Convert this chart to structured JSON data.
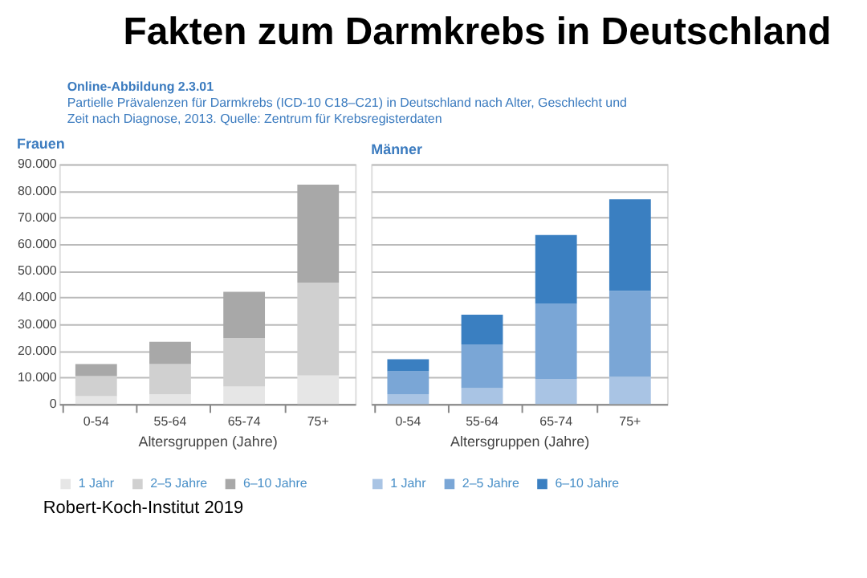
{
  "chart_data": [
    {
      "type": "bar",
      "title": "Frauen",
      "stacked": true,
      "categories": [
        "0-54",
        "55-64",
        "65-74",
        "75+"
      ],
      "series": [
        {
          "name": "1 Jahr",
          "color": "#e6e6e6",
          "values": [
            3000,
            3700,
            6600,
            10700
          ]
        },
        {
          "name": "2–5 Jahre",
          "color": "#d0d0d0",
          "values": [
            7500,
            11300,
            18200,
            34900
          ]
        },
        {
          "name": "6–10 Jahre",
          "color": "#a8a8a8",
          "values": [
            4500,
            8400,
            17300,
            36700
          ]
        }
      ],
      "xlabel": "Altersgruppen (Jahre)",
      "ylim": [
        0,
        90000
      ],
      "yticks": [
        0,
        {
          "value": 10000,
          "label": "10.000"
        },
        {
          "value": 20000,
          "label": "20.000"
        },
        {
          "value": 30000,
          "label": "30.000"
        },
        {
          "value": 40000,
          "label": "40.000"
        },
        {
          "value": 50000,
          "label": "50.000"
        },
        {
          "value": 60000,
          "label": "60.000"
        },
        {
          "value": 70000,
          "label": "70.000"
        },
        {
          "value": 80000,
          "label": "80.000"
        },
        {
          "value": 90000,
          "label": "90.000"
        }
      ],
      "grid": "y",
      "legend": "bottom",
      "annotations": [
        "Fakten zum Darmkrebs in Deutschland",
        "Online-Abbildung 2.3.01",
        "Partielle Prävalenzen für Darmkrebs (ICD-10 C18–C21) in Deutschland nach Alter, Geschlecht und Zeit nach Diagnose, 2013. Quelle: Zentrum für Krebsregisterdaten",
        "Robert-Koch-Institut 2019"
      ]
    },
    {
      "type": "bar",
      "title": "Männer",
      "stacked": true,
      "categories": [
        "0-54",
        "55-64",
        "65-74",
        "75+"
      ],
      "series": [
        {
          "name": "1 Jahr",
          "color": "#a9c4e4",
          "values": [
            3700,
            6000,
            9400,
            10300
          ]
        },
        {
          "name": "2–5 Jahre",
          "color": "#7aa6d6",
          "values": [
            8600,
            16400,
            28200,
            32200
          ]
        },
        {
          "name": "6–10 Jahre",
          "color": "#3a7fc1",
          "values": [
            4500,
            11100,
            25800,
            34300
          ]
        }
      ],
      "xlabel": "Altersgruppen (Jahre)",
      "ylim": [
        0,
        90000
      ],
      "yticks": [
        0,
        10000,
        20000,
        30000,
        40000,
        50000,
        60000,
        70000,
        80000,
        90000
      ],
      "grid": "y",
      "legend": "bottom",
      "tick_labels": "x"
    }
  ]
}
